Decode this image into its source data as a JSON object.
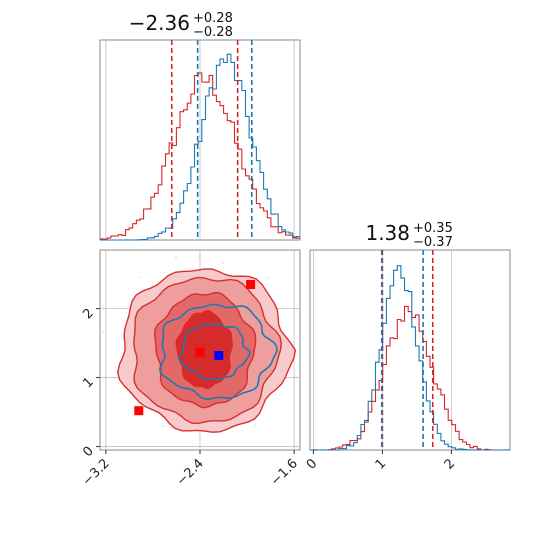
{
  "chart_data": {
    "type": "corner",
    "colors": {
      "red": "#d62728",
      "blue": "#1f77b4",
      "grid": "#bfbfbf",
      "point_red": "#ff0000",
      "point_blue": "#0000ff"
    },
    "panels": [
      {
        "id": "hist-x",
        "kind": "histogram",
        "title": {
          "value": "−2.36",
          "plus": "+0.28",
          "minus": "−0.28"
        },
        "xlim": [
          -3.25,
          -1.55
        ],
        "series": [
          {
            "name": "red",
            "color": "#d62728",
            "center": -2.36,
            "sigma": 0.27,
            "peak": 0.8
          },
          {
            "name": "blue",
            "color": "#1f77b4",
            "center": -2.18,
            "sigma": 0.21,
            "peak": 0.9
          }
        ],
        "quantile_lines": [
          {
            "color": "#d62728",
            "x": -2.64
          },
          {
            "color": "#d62728",
            "x": -2.08
          },
          {
            "color": "#1f77b4",
            "x": -2.42
          },
          {
            "color": "#1f77b4",
            "x": -1.96
          }
        ]
      },
      {
        "id": "scatter-xy",
        "kind": "2d-density",
        "xlim": [
          -3.25,
          -1.55
        ],
        "ylim": [
          -0.05,
          2.85
        ],
        "xticks": [
          -3.2,
          -2.4,
          -1.6
        ],
        "xtick_labels": [
          "−3.2",
          "−2.4",
          "−1.6"
        ],
        "yticks": [
          0,
          1,
          2
        ],
        "ytick_labels": [
          "0",
          "1",
          "2"
        ],
        "red_contours": [
          {
            "cx": -2.36,
            "cy": 1.4,
            "rx": 0.23,
            "ry": 0.55
          },
          {
            "cx": -2.36,
            "cy": 1.4,
            "rx": 0.42,
            "ry": 0.82
          },
          {
            "cx": -2.36,
            "cy": 1.4,
            "rx": 0.62,
            "ry": 1.05
          },
          {
            "cx": -2.36,
            "cy": 1.4,
            "rx": 0.72,
            "ry": 1.18
          }
        ],
        "blue_contours": [
          {
            "cx": -2.28,
            "cy": 1.38,
            "rx": 0.28,
            "ry": 0.4
          },
          {
            "cx": -2.26,
            "cy": 1.38,
            "rx": 0.48,
            "ry": 0.68
          }
        ],
        "markers": [
          {
            "color": "#ff0000",
            "x": -1.97,
            "y": 2.35
          },
          {
            "color": "#ff0000",
            "x": -2.4,
            "y": 1.37
          },
          {
            "color": "#ff0000",
            "x": -2.92,
            "y": 0.52
          },
          {
            "color": "#0000ff",
            "x": -2.24,
            "y": 1.32
          }
        ]
      },
      {
        "id": "hist-y",
        "kind": "histogram",
        "title": {
          "value": "1.38",
          "plus": "+0.35",
          "minus": "−0.37"
        },
        "xlim": [
          -0.05,
          2.85
        ],
        "xticks": [
          0,
          1,
          2
        ],
        "xtick_labels": [
          "0",
          "1",
          "2"
        ],
        "series": [
          {
            "name": "red",
            "color": "#d62728",
            "center": 1.38,
            "sigma": 0.34,
            "peak": 0.7
          },
          {
            "name": "blue",
            "color": "#1f77b4",
            "center": 1.25,
            "sigma": 0.26,
            "peak": 0.9
          }
        ],
        "quantile_lines": [
          {
            "color": "#d62728",
            "x": 1.0
          },
          {
            "color": "#d62728",
            "x": 1.73
          },
          {
            "color": "#1f77b4",
            "x": 0.99
          },
          {
            "color": "#1f77b4",
            "x": 1.59
          }
        ]
      }
    ]
  }
}
